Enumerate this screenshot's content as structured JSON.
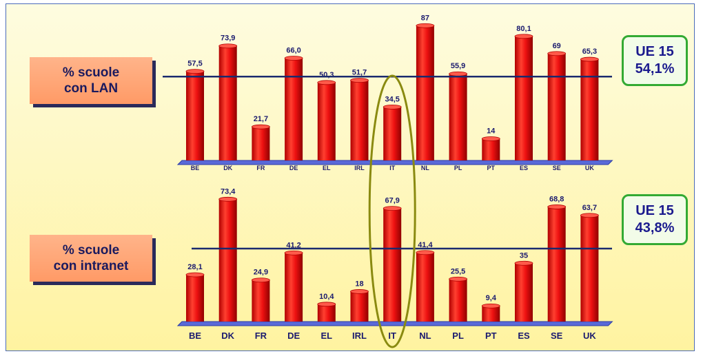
{
  "chart_data": [
    {
      "type": "bar",
      "label_lines": [
        "% scuole",
        "con LAN"
      ],
      "categories": [
        "BE",
        "DK",
        "FR",
        "DE",
        "EL",
        "IRL",
        "IT",
        "NL",
        "PL",
        "PT",
        "ES",
        "SE",
        "UK"
      ],
      "values": [
        57.5,
        73.9,
        21.7,
        66.0,
        50.3,
        51.7,
        34.5,
        87,
        55.9,
        14,
        80.1,
        69,
        65.3
      ],
      "value_labels": [
        "57,5",
        "73,9",
        "21,7",
        "66,0",
        "50,3",
        "51,7",
        "34,5",
        "87",
        "55,9",
        "14",
        "80,1",
        "69",
        "65,3"
      ],
      "reference": {
        "value": 54.1,
        "label_lines": [
          "UE 15",
          "54,1%"
        ]
      },
      "ylim": [
        0,
        88
      ]
    },
    {
      "type": "bar",
      "label_lines": [
        "% scuole",
        "con intranet"
      ],
      "categories": [
        "BE",
        "DK",
        "FR",
        "DE",
        "EL",
        "IRL",
        "IT",
        "NL",
        "PL",
        "PT",
        "ES",
        "SE",
        "UK"
      ],
      "values": [
        28.1,
        73.4,
        24.9,
        41.2,
        10.4,
        18,
        67.9,
        41.4,
        25.5,
        9.4,
        35,
        68.8,
        63.7
      ],
      "value_labels": [
        "28,1",
        "73,4",
        "24,9",
        "41,2",
        "10,4",
        "18",
        "67,9",
        "41,4",
        "25,5",
        "9,4",
        "35",
        "68,8",
        "63,7"
      ],
      "reference": {
        "value": 43.8,
        "label_lines": [
          "UE 15",
          "43,8%"
        ]
      },
      "ylim": [
        0,
        76
      ]
    }
  ],
  "highlight_category": "IT",
  "colors": {
    "bar": "#ee1111",
    "reference_line": "#1a2a6e",
    "value_text": "#1a1a6e",
    "highlight_ellipse": "#8a8a10",
    "background_top": "#fefce0",
    "background_bottom": "#fff3a0"
  }
}
